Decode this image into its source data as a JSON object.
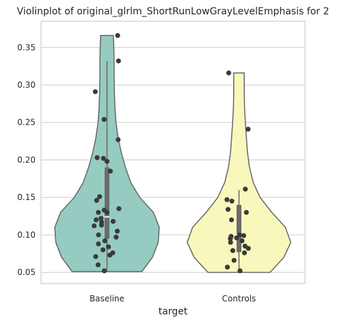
{
  "chart_data": {
    "type": "violin",
    "title": "Violinplot of original_glrlm_ShortRunLowGrayLevelEmphasis for 2",
    "xlabel": "target",
    "ylabel": "",
    "ylim": [
      0.035,
      0.385
    ],
    "yticks": [
      0.05,
      0.1,
      0.15,
      0.2,
      0.25,
      0.3,
      0.35
    ],
    "ytick_labels": [
      "0.05",
      "0.10",
      "0.15",
      "0.20",
      "0.25",
      "0.30",
      "0.35"
    ],
    "grid": true,
    "categories": [
      "Baseline",
      "Controls"
    ],
    "colors": {
      "Baseline": "#95cbc1",
      "Controls": "#f8f8bc",
      "outline": "#666666",
      "point": "#3a3a3a",
      "box": "#6b6b6b"
    },
    "violins": [
      {
        "category": "Baseline",
        "min": 0.051,
        "max": 0.366,
        "q1": 0.095,
        "median": 0.124,
        "q3": 0.19,
        "whisker_low": 0.051,
        "whisker_high": 0.332,
        "density": [
          [
            0.051,
            0.66
          ],
          [
            0.07,
            0.86
          ],
          [
            0.09,
            0.97
          ],
          [
            0.11,
            0.99
          ],
          [
            0.13,
            0.88
          ],
          [
            0.15,
            0.62
          ],
          [
            0.17,
            0.45
          ],
          [
            0.19,
            0.35
          ],
          [
            0.21,
            0.27
          ],
          [
            0.23,
            0.21
          ],
          [
            0.25,
            0.17
          ],
          [
            0.27,
            0.15
          ],
          [
            0.29,
            0.14
          ],
          [
            0.31,
            0.135
          ],
          [
            0.33,
            0.135
          ],
          [
            0.35,
            0.13
          ],
          [
            0.366,
            0.12
          ]
        ],
        "points": [
          0.366,
          0.332,
          0.291,
          0.254,
          0.227,
          0.203,
          0.202,
          0.198,
          0.185,
          0.151,
          0.146,
          0.135,
          0.133,
          0.13,
          0.13,
          0.122,
          0.12,
          0.118,
          0.117,
          0.113,
          0.112,
          0.105,
          0.1,
          0.097,
          0.092,
          0.088,
          0.084,
          0.08,
          0.076,
          0.073,
          0.071,
          0.06,
          0.052
        ]
      },
      {
        "category": "Controls",
        "min": 0.05,
        "max": 0.316,
        "q1": 0.077,
        "median": 0.1,
        "q3": 0.14,
        "whisker_low": 0.05,
        "whisker_high": 0.16,
        "density": [
          [
            0.05,
            0.59
          ],
          [
            0.07,
            0.85
          ],
          [
            0.09,
            0.98
          ],
          [
            0.11,
            0.88
          ],
          [
            0.13,
            0.62
          ],
          [
            0.15,
            0.4
          ],
          [
            0.17,
            0.27
          ],
          [
            0.19,
            0.2
          ],
          [
            0.21,
            0.16
          ],
          [
            0.23,
            0.14
          ],
          [
            0.25,
            0.12
          ],
          [
            0.27,
            0.105
          ],
          [
            0.29,
            0.1
          ],
          [
            0.316,
            0.1
          ]
        ],
        "points": [
          0.316,
          0.241,
          0.161,
          0.147,
          0.145,
          0.134,
          0.13,
          0.12,
          0.1,
          0.099,
          0.098,
          0.096,
          0.095,
          0.092,
          0.09,
          0.085,
          0.082,
          0.079,
          0.076,
          0.066,
          0.057,
          0.052
        ]
      }
    ]
  }
}
